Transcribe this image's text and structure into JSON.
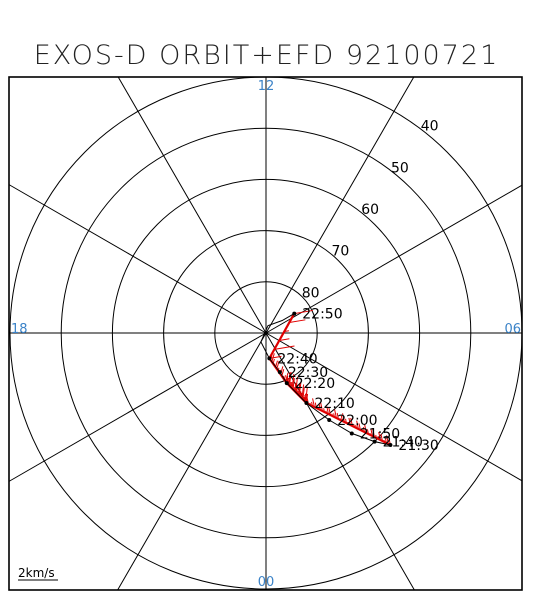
{
  "chart_data": {
    "type": "polar-orbit",
    "title": "EXOS-D ORBIT+EFD 92100721",
    "mlt_labels": [
      {
        "text": "12",
        "mlt": 12
      },
      {
        "text": "06",
        "mlt": 6
      },
      {
        "text": "00",
        "mlt": 0
      },
      {
        "text": "18",
        "mlt": 18
      }
    ],
    "latitude_circles": [
      80,
      70,
      60,
      50,
      40
    ],
    "latitude_range": [
      40,
      90
    ],
    "radial_spokes_every_hours": 2,
    "scale_label": "2km/s",
    "orbit": {
      "color": "#000000",
      "points": [
        {
          "mlt": 3.2,
          "lat": 57.3
        },
        {
          "mlt": 3.0,
          "lat": 60.0
        },
        {
          "mlt": 2.7,
          "lat": 64.2
        },
        {
          "mlt": 2.4,
          "lat": 69.0
        },
        {
          "mlt": 2.0,
          "lat": 74.2
        },
        {
          "mlt": 1.5,
          "lat": 79.4
        },
        {
          "mlt": 1.3,
          "lat": 81.9
        },
        {
          "mlt": 0.5,
          "lat": 85.0
        },
        {
          "mlt": 22.0,
          "lat": 88.0
        },
        {
          "mlt": 11.0,
          "lat": 88.5
        },
        {
          "mlt": 8.5,
          "lat": 86.0
        },
        {
          "mlt": 8.3,
          "lat": 83.3
        }
      ]
    },
    "time_marks": [
      {
        "label": "22:50",
        "mlt": 8.3,
        "lat": 83.3
      },
      {
        "label": "22:40",
        "mlt": 0.5,
        "lat": 85.0
      },
      {
        "label": "22:30",
        "mlt": 1.3,
        "lat": 81.9
      },
      {
        "label": "22:20",
        "mlt": 1.5,
        "lat": 79.4
      },
      {
        "label": "22:10",
        "mlt": 2.0,
        "lat": 74.2
      },
      {
        "label": "22:00",
        "mlt": 2.4,
        "lat": 69.0
      },
      {
        "label": "21:50",
        "mlt": 2.7,
        "lat": 64.2
      },
      {
        "label": "21:40",
        "mlt": 3.0,
        "lat": 60.0
      },
      {
        "label": "21:30",
        "mlt": 3.2,
        "lat": 57.3
      }
    ],
    "efd_vectors": {
      "color": "#e00000",
      "segments": [
        {
          "from": {
            "mlt": 3.2,
            "lat": 57.3
          },
          "to": {
            "mlt": 2.0,
            "lat": 74.2
          },
          "count": 42
        },
        {
          "from": {
            "mlt": 2.0,
            "lat": 74.2
          },
          "to": {
            "mlt": 1.5,
            "lat": 79.4
          },
          "count": 22
        },
        {
          "from": {
            "mlt": 1.5,
            "lat": 79.4
          },
          "to": {
            "mlt": 0.5,
            "lat": 85.0
          },
          "count": 14
        },
        {
          "from": {
            "mlt": 0.5,
            "lat": 85.0
          },
          "to": {
            "mlt": 8.3,
            "lat": 83.3
          },
          "count": 5
        }
      ]
    }
  }
}
